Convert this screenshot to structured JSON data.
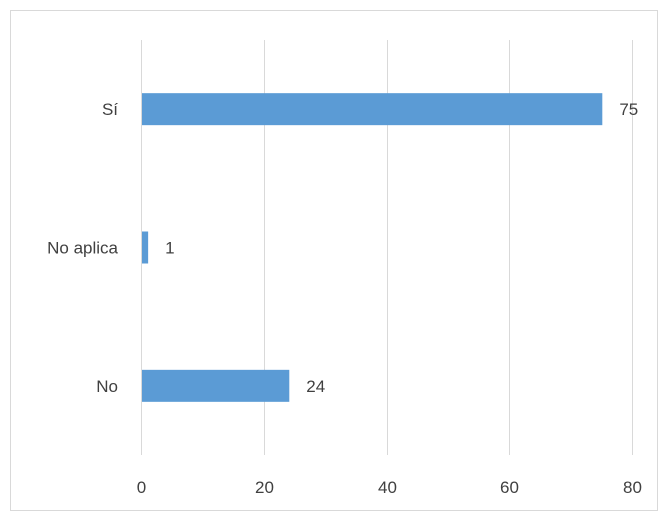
{
  "chart_data": {
    "type": "bar",
    "orientation": "horizontal",
    "categories": [
      "Sí",
      "No aplica",
      "No"
    ],
    "values": [
      75,
      1,
      24
    ],
    "data_labels": [
      "75",
      "1",
      "24"
    ],
    "xlim": [
      0,
      80
    ],
    "x_ticks": [
      "0",
      "20",
      "40",
      "60",
      "80"
    ],
    "x_tick_values": [
      0,
      20,
      40,
      60,
      80
    ],
    "grid": "vertical",
    "legend": "none",
    "title": "",
    "xlabel": "",
    "ylabel": "",
    "colors": {
      "bar": "#5B9BD5",
      "grid": "#D9D9D9",
      "text": "#404040",
      "border": "#D9D9D9"
    }
  }
}
